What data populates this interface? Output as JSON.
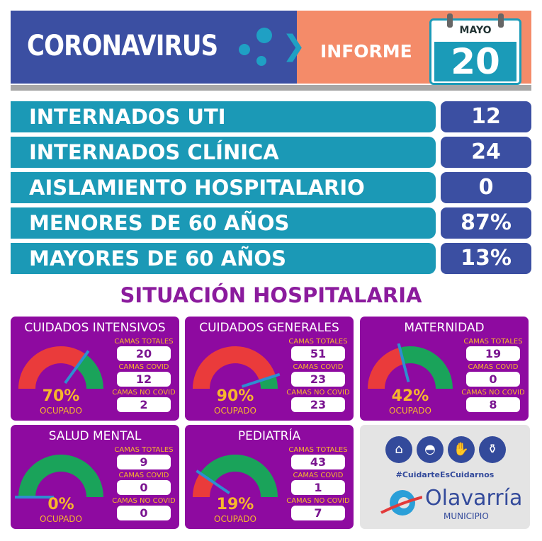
{
  "header": {
    "title": "CORONAVIRUS",
    "subtitle": "INFORME",
    "calendar": {
      "month": "MAYO",
      "day": "20"
    }
  },
  "rows": [
    {
      "label": "INTERNADOS UTI",
      "value": "12"
    },
    {
      "label": "INTERNADOS CLÍNICA",
      "value": "24"
    },
    {
      "label": "AISLAMIENTO HOSPITALARIO",
      "value": "0"
    },
    {
      "label": "MENORES DE 60 AÑOS",
      "value": "87%"
    },
    {
      "label": "MAYORES DE 60 AÑOS",
      "value": "13%"
    }
  ],
  "section_title": "SITUACIÓN HOSPITALARIA",
  "stat_labels": {
    "total": "CAMAS TOTALES",
    "covid": "CAMAS COVID",
    "no_covid": "CAMAS NO COVID",
    "occupied": "OCUPADO"
  },
  "cards": [
    {
      "title": "CUIDADOS INTENSIVOS",
      "percent": "70%",
      "occupancy": 70,
      "total": "20",
      "covid": "12",
      "no_covid": "2"
    },
    {
      "title": "CUIDADOS GENERALES",
      "percent": "90%",
      "occupancy": 90,
      "total": "51",
      "covid": "23",
      "no_covid": "23"
    },
    {
      "title": "MATERNIDAD",
      "percent": "42%",
      "occupancy": 42,
      "total": "19",
      "covid": "0",
      "no_covid": "8"
    },
    {
      "title": "SALUD MENTAL",
      "percent": "0%",
      "occupancy": 0,
      "total": "9",
      "covid": "0",
      "no_covid": "0"
    },
    {
      "title": "PEDIATRÍA",
      "percent": "19%",
      "occupancy": 19,
      "total": "43",
      "covid": "1",
      "no_covid": "7"
    }
  ],
  "footer": {
    "icons": [
      "house-icon",
      "mask-icon",
      "handwash-icon",
      "sanitizer-icon"
    ],
    "hashtag": "#CuidarteEsCuidarnos",
    "logo_name": "Olavarría",
    "logo_sub": "MUNICIPIO"
  },
  "colors": {
    "blue": "#3b4fa2",
    "salmon": "#f48b69",
    "teal": "#1b99b6",
    "purple": "#8e0aa0",
    "occupied": "#ea3b3b",
    "free": "#1aa35a",
    "needle": "#2d8fd0",
    "accent": "#f7b62c"
  }
}
